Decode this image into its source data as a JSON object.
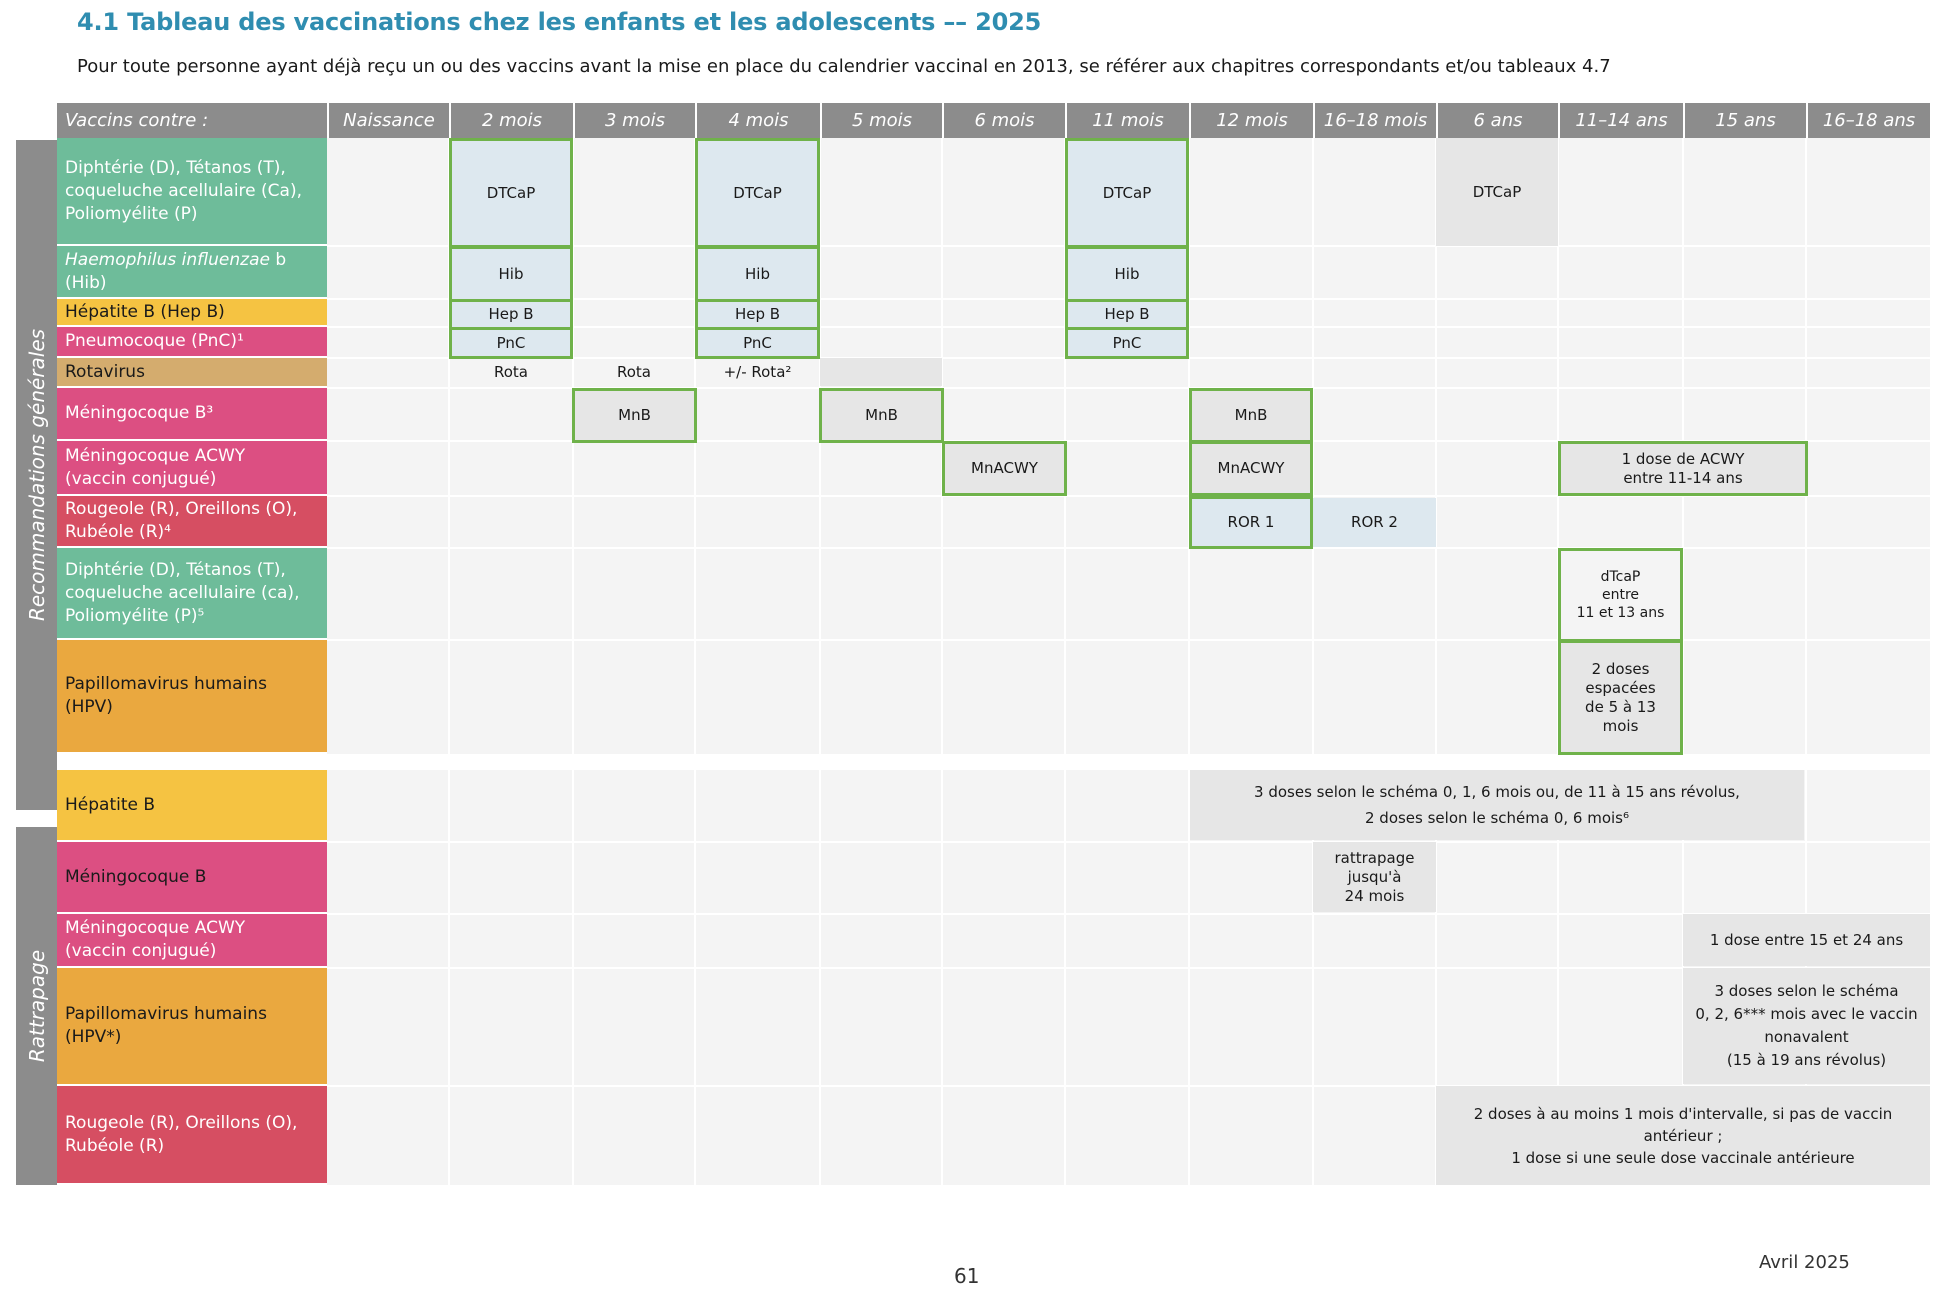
{
  "title": "4.1 Tableau des vaccinations chez les enfants et les adolescents –– 2025",
  "subtitle": "Pour toute personne ayant déjà reçu un ou des vaccins avant la mise en place du calendrier vaccinal en 2013, se référer aux chapitres correspondants et/ou tableaux 4.7",
  "header": {
    "first": "Vaccins contre :",
    "columns": [
      "Naissance",
      "2 mois",
      "3 mois",
      "4 mois",
      "5 mois",
      "6 mois",
      "11 mois",
      "12 mois",
      "16–18 mois",
      "6 ans",
      "11–14 ans",
      "15 ans",
      "16–18 ans"
    ]
  },
  "sections": {
    "general": "Recommandations générales",
    "catchup": "Rattrapage"
  },
  "rows": [
    {
      "label": "Diphtérie (D), Tétanos (T),\ncoqueluche acellulaire (Ca),\nPoliomyélite (P)",
      "color": "#6ebc9a"
    },
    {
      "label_italic": "Haemophilus influenzae",
      "label_rest": " b (Hib)",
      "color": "#6ebc9a"
    },
    {
      "label": "Hépatite B (Hep B)",
      "color": "#f5c342"
    },
    {
      "label": "Pneumocoque (PnC)¹",
      "color": "#dc4f82"
    },
    {
      "label": "Rotavirus",
      "color": "#d4ac6e"
    },
    {
      "label": "Méningocoque B³",
      "color": "#dc4f82"
    },
    {
      "label": "Méningocoque ACWY\n(vaccin conjugué)",
      "color": "#dc4f82"
    },
    {
      "label": "Rougeole (R), Oreillons (O),\nRubéole (R)⁴",
      "color": "#d64e62"
    },
    {
      "label": "Diphtérie (D), Tétanos (T),\ncoqueluche acellulaire (ca),\nPoliomyélite (P)⁵",
      "color": "#6ebc9a"
    },
    {
      "label": "Papillomavirus humains\n(HPV)",
      "color": "#eaa83f"
    },
    {
      "label": "Hépatite B",
      "color": "#f5c342"
    },
    {
      "label": "Méningocoque B",
      "color": "#dc4f82"
    },
    {
      "label": "Méningocoque ACWY\n(vaccin conjugué)",
      "color": "#dc4f82"
    },
    {
      "label": "Papillomavirus humains\n(HPV*)",
      "color": "#eaa83f"
    },
    {
      "label": "Rougeole (R), Oreillons (O),\nRubéole (R)",
      "color": "#d64e62"
    }
  ],
  "cells": {
    "dtcap": "DTCaP",
    "hib": "Hib",
    "hepb": "Hep B",
    "pnc": "PnC",
    "rota": "Rota",
    "rota_opt": "+/- Rota²",
    "mnb": "MnB",
    "mnacwy": "MnACWY",
    "acwy_dose": "1 dose de ACWY\nentre 11-14 ans",
    "ror1": "ROR 1",
    "ror2": "ROR 2",
    "dtcap_rappel": "dTcaP\nentre\n11 et 13 ans",
    "hpv_doses": "2 doses\nespacées\nde 5 à 13 mois",
    "hepb_catchup": "3 doses selon le schéma 0, 1, 6 mois ou, de 11 à 15 ans révolus,\n2 doses selon le schéma 0, 6 mois⁶",
    "mnb_catchup": "rattrapage\njusqu'à\n24 mois",
    "acwy_catchup": "1 dose entre 15 et 24 ans",
    "hpv_catchup": "3 doses selon le schéma\n0, 2, 6*** mois avec le vaccin\nnonavalent\n(15 à 19 ans révolus)",
    "ror_catchup": "2 doses à au moins 1 mois d'intervalle, si pas de vaccin\nantérieur ;\n1 dose si une seule dose vaccinale antérieure"
  },
  "footer": {
    "page": "61",
    "date": "Avril 2025"
  }
}
